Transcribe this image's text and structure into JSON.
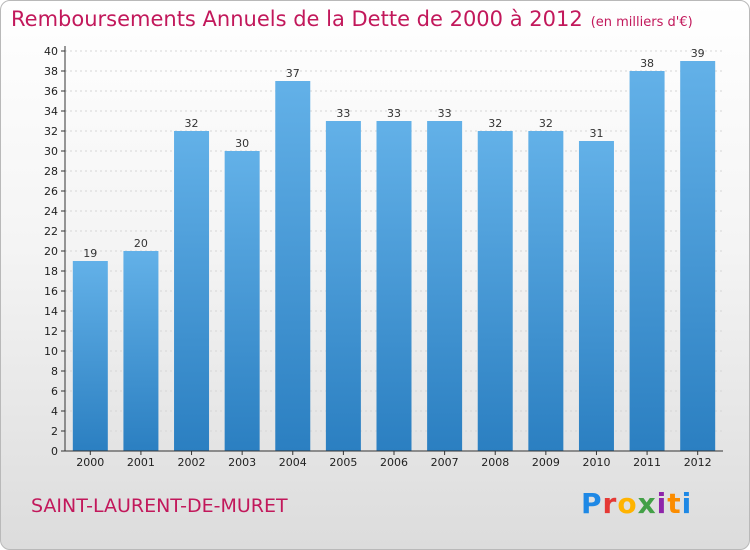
{
  "header": {
    "title": "Remboursements Annuels de la Dette de 2000 à 2012",
    "unit": "(en milliers d'€)"
  },
  "footer": {
    "commune": "SAINT-LAURENT-DE-MURET",
    "logo_text": "Proxiti",
    "logo_colors": [
      "#1e88e5",
      "#e53935",
      "#ffb300",
      "#43a047",
      "#8e24aa",
      "#fb8c00",
      "#1e88e5"
    ]
  },
  "colors": {
    "bar_top": "#63b1e8",
    "bar_bottom": "#2b7fc1",
    "accent": "#c2185b",
    "axis": "#333333",
    "grid": "#d6d6d6"
  },
  "chart_data": {
    "type": "bar",
    "title": "Remboursements Annuels de la Dette de 2000 à 2012",
    "xlabel": "",
    "ylabel": "",
    "categories": [
      "2000",
      "2001",
      "2002",
      "2003",
      "2004",
      "2005",
      "2006",
      "2007",
      "2008",
      "2009",
      "2010",
      "2011",
      "2012"
    ],
    "values": [
      19,
      20,
      32,
      30,
      37,
      33,
      33,
      33,
      32,
      32,
      31,
      38,
      39
    ],
    "ylim": [
      0,
      40
    ],
    "ytick_step": 2,
    "grid": true
  }
}
